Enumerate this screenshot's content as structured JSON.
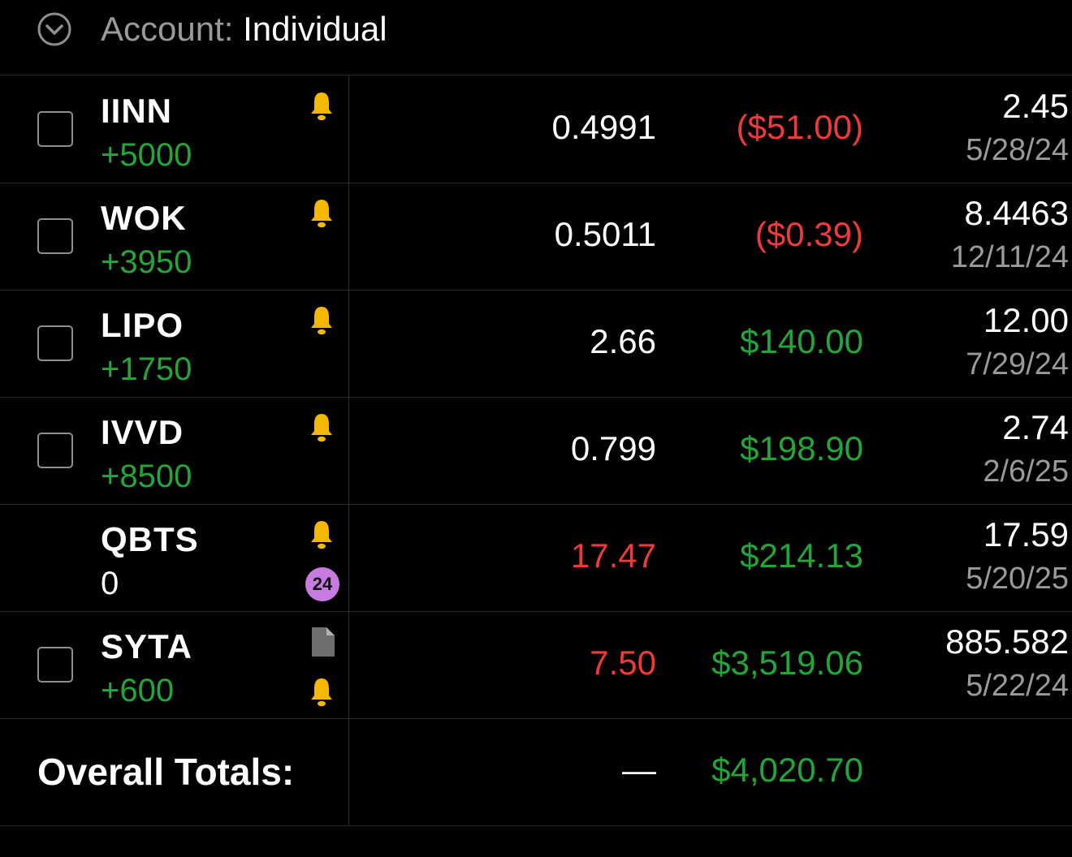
{
  "header": {
    "account_label": "Account:",
    "account_value": "Individual",
    "toggle_icon": "chevron-down-circle-icon"
  },
  "positions": [
    {
      "symbol": "IINN",
      "qty": "+5000",
      "price": "0.4991",
      "pl": "($51.00)",
      "cost": "2.45",
      "date": "5/28/24",
      "has_checkbox": true
    },
    {
      "symbol": "WOK",
      "qty": "+3950",
      "price": "0.5011",
      "pl": "($0.39)",
      "cost": "8.4463",
      "date": "12/11/24",
      "has_checkbox": true
    },
    {
      "symbol": "LIPO",
      "qty": "+1750",
      "price": "2.66",
      "pl": "$140.00",
      "cost": "12.00",
      "date": "7/29/24",
      "has_checkbox": true
    },
    {
      "symbol": "IVVD",
      "qty": "+8500",
      "price": "0.799",
      "pl": "$198.90",
      "cost": "2.74",
      "date": "2/6/25",
      "has_checkbox": true
    },
    {
      "symbol": "QBTS",
      "qty": "0",
      "price": "17.47",
      "pl": "$214.13",
      "cost": "17.59",
      "date": "5/20/25",
      "has_checkbox": false,
      "badge": "24"
    },
    {
      "symbol": "SYTA",
      "qty": "+600",
      "price": "7.50",
      "pl": "$3,519.06",
      "cost": "885.582",
      "date": "5/22/24",
      "has_checkbox": true
    }
  ],
  "totals": {
    "label": "Overall Totals:",
    "price_placeholder": "—",
    "pl": "$4,020.70"
  },
  "colors": {
    "gain": "#23a638",
    "loss": "#f03a3a",
    "bell": "#f5b800",
    "badge": "#c77be0"
  }
}
